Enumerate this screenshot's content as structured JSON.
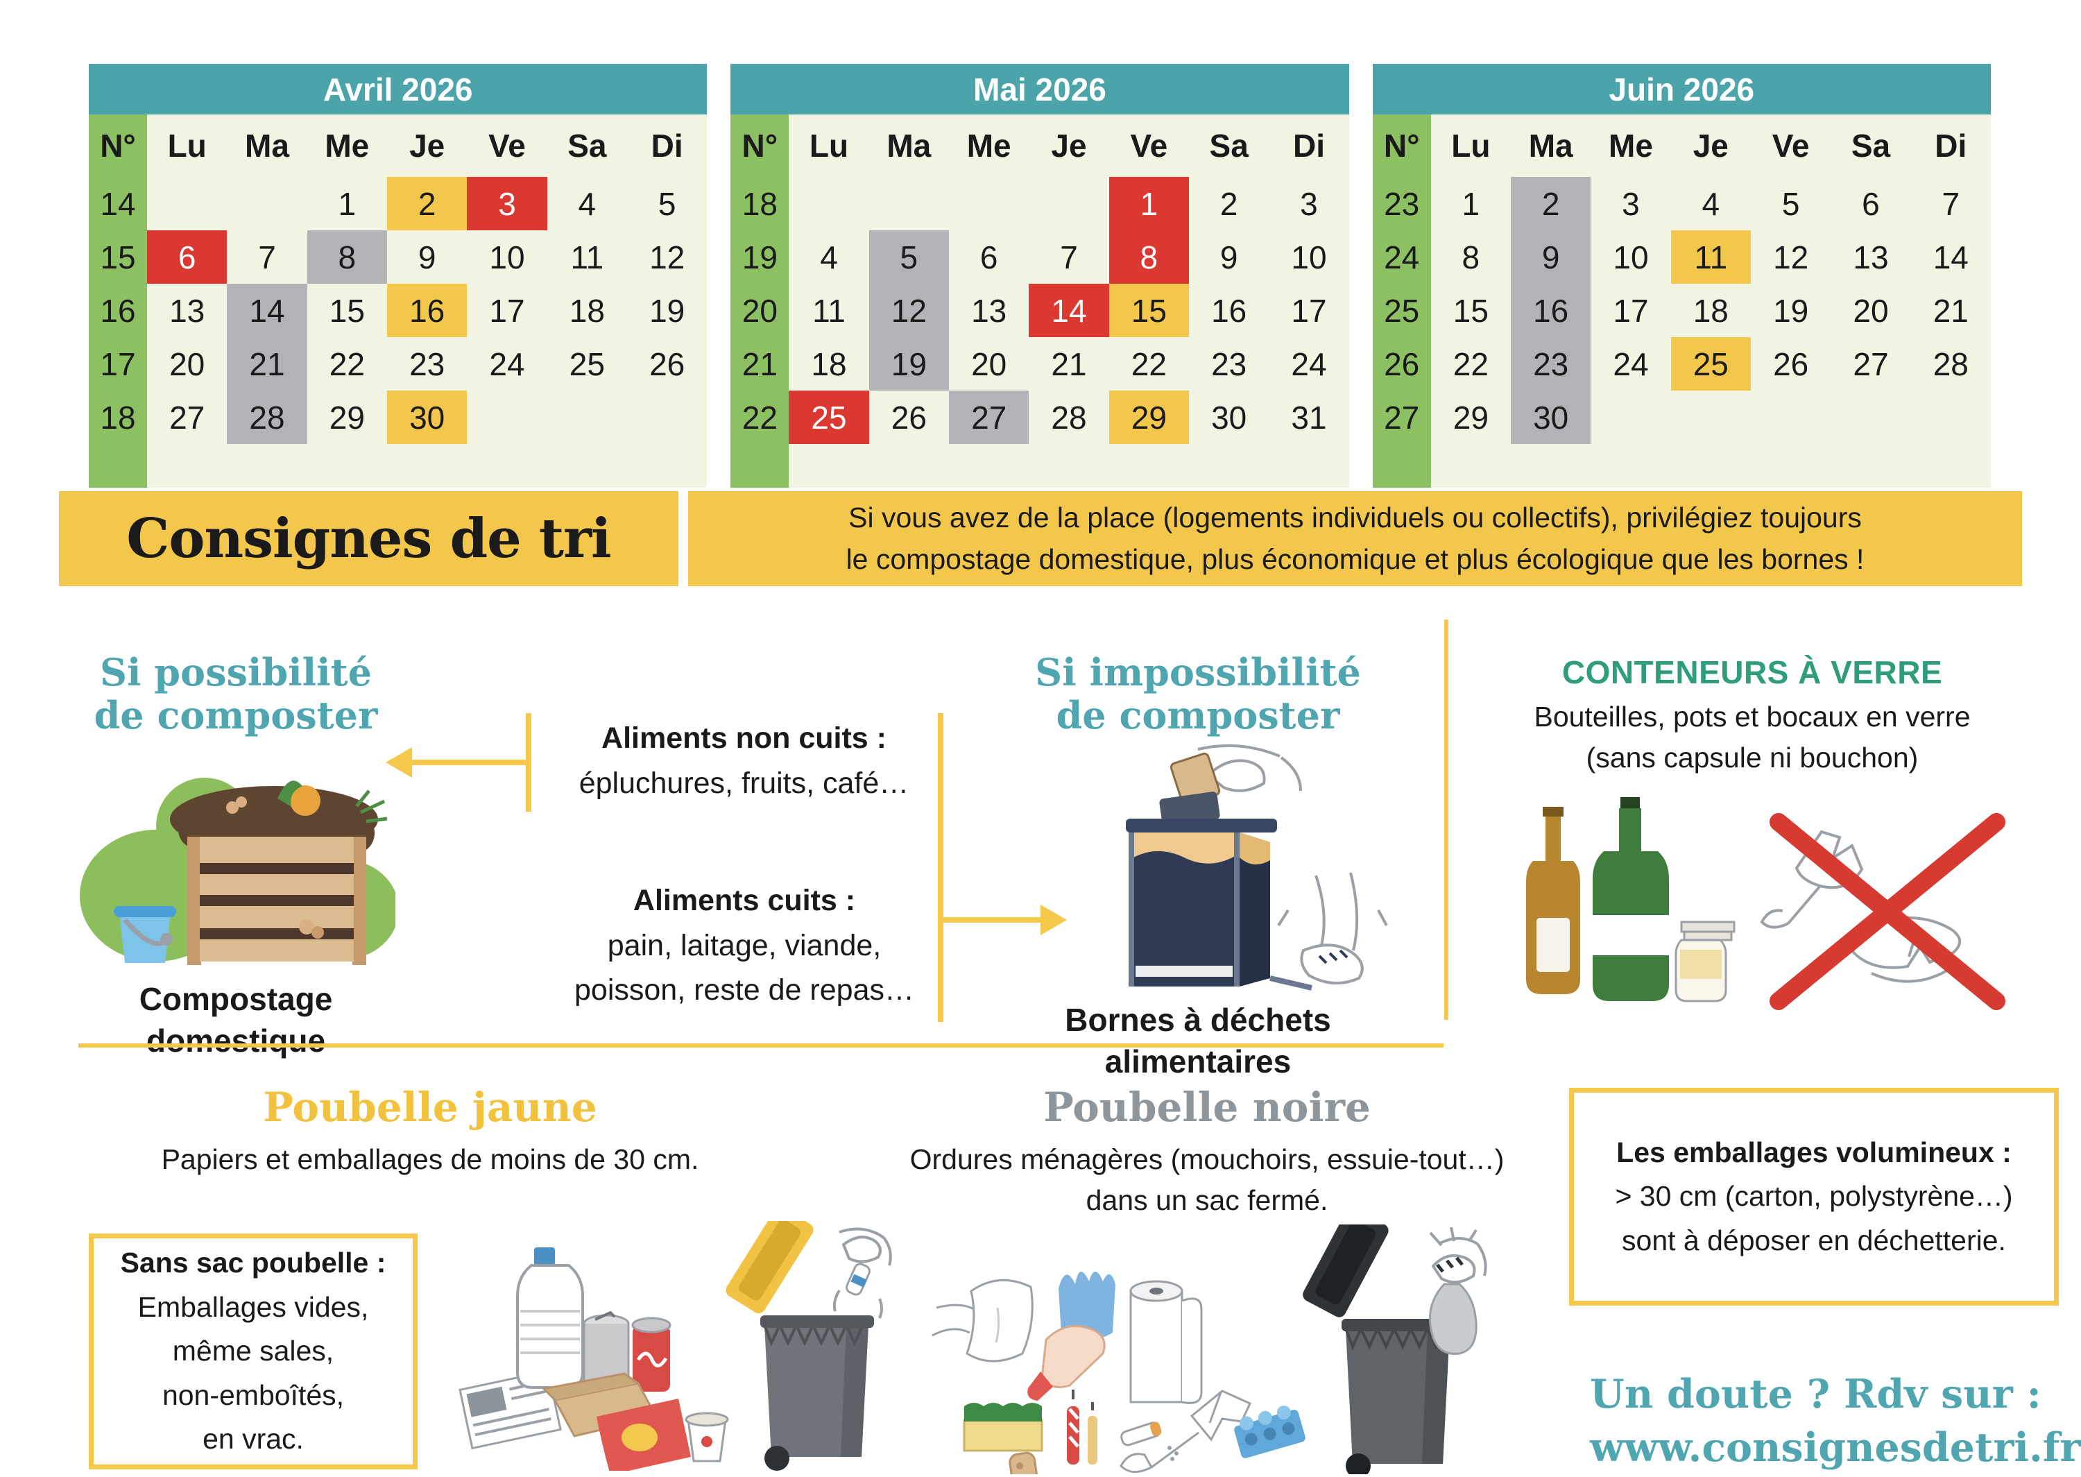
{
  "colors": {
    "teal": "#4BA4AA",
    "green": "#8CC063",
    "cream": "#F1F3E3",
    "yellow": "#F3C74B",
    "yellow-line": "#F5C84C",
    "red": "#DC3832",
    "gray": "#B3B2B6",
    "teal-heading": "#4FA6B0",
    "emerald": "#2F9C7C",
    "yellow-heading": "#F2C23E",
    "gray-heading": "#8D969C",
    "cross-red": "#D63A31"
  },
  "calendars": [
    {
      "title": "Avril 2026",
      "week_col_header": "N°",
      "day_headers": [
        "Lu",
        "Ma",
        "Me",
        "Je",
        "Ve",
        "Sa",
        "Di"
      ],
      "weeks": [
        {
          "num": "14",
          "days": [
            [
              "",
              ""
            ],
            [
              "",
              ""
            ],
            [
              "1",
              ""
            ],
            [
              "2",
              "yellow"
            ],
            [
              "3",
              "red"
            ],
            [
              "4",
              ""
            ],
            [
              "5",
              ""
            ]
          ]
        },
        {
          "num": "15",
          "days": [
            [
              "6",
              "red"
            ],
            [
              "7",
              ""
            ],
            [
              "8",
              "gray"
            ],
            [
              "9",
              ""
            ],
            [
              "10",
              ""
            ],
            [
              "11",
              ""
            ],
            [
              "12",
              ""
            ]
          ]
        },
        {
          "num": "16",
          "days": [
            [
              "13",
              ""
            ],
            [
              "14",
              "gray"
            ],
            [
              "15",
              ""
            ],
            [
              "16",
              "yellow"
            ],
            [
              "17",
              ""
            ],
            [
              "18",
              ""
            ],
            [
              "19",
              ""
            ]
          ]
        },
        {
          "num": "17",
          "days": [
            [
              "20",
              ""
            ],
            [
              "21",
              "gray"
            ],
            [
              "22",
              ""
            ],
            [
              "23",
              ""
            ],
            [
              "24",
              ""
            ],
            [
              "25",
              ""
            ],
            [
              "26",
              ""
            ]
          ]
        },
        {
          "num": "18",
          "days": [
            [
              "27",
              ""
            ],
            [
              "28",
              "gray"
            ],
            [
              "29",
              ""
            ],
            [
              "30",
              "yellow"
            ],
            [
              "",
              ""
            ],
            [
              "",
              ""
            ],
            [
              "",
              ""
            ]
          ]
        }
      ]
    },
    {
      "title": "Mai 2026",
      "week_col_header": "N°",
      "day_headers": [
        "Lu",
        "Ma",
        "Me",
        "Je",
        "Ve",
        "Sa",
        "Di"
      ],
      "weeks": [
        {
          "num": "18",
          "days": [
            [
              "",
              ""
            ],
            [
              "",
              ""
            ],
            [
              "",
              ""
            ],
            [
              "",
              ""
            ],
            [
              "1",
              "red"
            ],
            [
              "2",
              ""
            ],
            [
              "3",
              ""
            ]
          ]
        },
        {
          "num": "19",
          "days": [
            [
              "4",
              ""
            ],
            [
              "5",
              "gray"
            ],
            [
              "6",
              ""
            ],
            [
              "7",
              ""
            ],
            [
              "8",
              "red"
            ],
            [
              "9",
              ""
            ],
            [
              "10",
              ""
            ]
          ]
        },
        {
          "num": "20",
          "days": [
            [
              "11",
              ""
            ],
            [
              "12",
              "gray"
            ],
            [
              "13",
              ""
            ],
            [
              "14",
              "red"
            ],
            [
              "15",
              "yellow"
            ],
            [
              "16",
              ""
            ],
            [
              "17",
              ""
            ]
          ]
        },
        {
          "num": "21",
          "days": [
            [
              "18",
              ""
            ],
            [
              "19",
              "gray"
            ],
            [
              "20",
              ""
            ],
            [
              "21",
              ""
            ],
            [
              "22",
              ""
            ],
            [
              "23",
              ""
            ],
            [
              "24",
              ""
            ]
          ]
        },
        {
          "num": "22",
          "days": [
            [
              "25",
              "red"
            ],
            [
              "26",
              ""
            ],
            [
              "27",
              "gray"
            ],
            [
              "28",
              ""
            ],
            [
              "29",
              "yellow"
            ],
            [
              "30",
              ""
            ],
            [
              "31",
              ""
            ]
          ]
        }
      ]
    },
    {
      "title": "Juin 2026",
      "week_col_header": "N°",
      "day_headers": [
        "Lu",
        "Ma",
        "Me",
        "Je",
        "Ve",
        "Sa",
        "Di"
      ],
      "weeks": [
        {
          "num": "23",
          "days": [
            [
              "1",
              ""
            ],
            [
              "2",
              "gray"
            ],
            [
              "3",
              ""
            ],
            [
              "4",
              ""
            ],
            [
              "5",
              ""
            ],
            [
              "6",
              ""
            ],
            [
              "7",
              ""
            ]
          ]
        },
        {
          "num": "24",
          "days": [
            [
              "8",
              ""
            ],
            [
              "9",
              "gray"
            ],
            [
              "10",
              ""
            ],
            [
              "11",
              "yellow"
            ],
            [
              "12",
              ""
            ],
            [
              "13",
              ""
            ],
            [
              "14",
              ""
            ]
          ]
        },
        {
          "num": "25",
          "days": [
            [
              "15",
              ""
            ],
            [
              "16",
              "gray"
            ],
            [
              "17",
              ""
            ],
            [
              "18",
              ""
            ],
            [
              "19",
              ""
            ],
            [
              "20",
              ""
            ],
            [
              "21",
              ""
            ]
          ]
        },
        {
          "num": "26",
          "days": [
            [
              "22",
              ""
            ],
            [
              "23",
              "gray"
            ],
            [
              "24",
              ""
            ],
            [
              "25",
              "yellow"
            ],
            [
              "26",
              ""
            ],
            [
              "27",
              ""
            ],
            [
              "28",
              ""
            ]
          ]
        },
        {
          "num": "27",
          "days": [
            [
              "29",
              ""
            ],
            [
              "30",
              "gray"
            ],
            [
              "",
              ""
            ],
            [
              "",
              ""
            ],
            [
              "",
              ""
            ],
            [
              "",
              ""
            ],
            [
              "",
              ""
            ]
          ]
        }
      ]
    }
  ],
  "banner": {
    "title": "Consignes de tri",
    "line1": "Si vous avez de la place (logements individuels ou collectifs), privilégiez toujours",
    "line2": "le compostage domestique, plus économique et plus écologique que les bornes !"
  },
  "compost": {
    "heading_line1": "Si possibilité",
    "heading_line2": "de composter",
    "caption_line1": "Compostage",
    "caption_line2": "domestique"
  },
  "center": {
    "block1_title": "Aliments non cuits :",
    "block1_text": "épluchures, fruits, café…",
    "block2_title": "Aliments cuits :",
    "block2_line1": "pain, laitage, viande,",
    "block2_line2": "poisson, reste de repas…"
  },
  "borne": {
    "heading_line1": "Si impossibilité",
    "heading_line2": "de composter",
    "caption_line1": "Bornes à déchets",
    "caption_line2": "alimentaires"
  },
  "glass": {
    "title": "CONTENEURS À VERRE",
    "line1": "Bouteilles, pots et bocaux en verre",
    "line2": "(sans capsule ni bouchon)"
  },
  "yellow_bin": {
    "title": "Poubelle jaune",
    "subtitle": "Papiers et emballages de moins de 30 cm.",
    "box_title": "Sans sac poubelle :",
    "box_lines": [
      "Emballages vides,",
      "même sales,",
      "non-emboîtés,",
      "en vrac."
    ]
  },
  "black_bin": {
    "title": "Poubelle noire",
    "subtitle_line1": "Ordures ménagères (mouchoirs, essuie-tout…)",
    "subtitle_line2": "dans un sac fermé."
  },
  "bulky": {
    "line1": "Les emballages volumineux :",
    "line2": "> 30 cm (carton, polystyrène…)",
    "line3": "sont à déposer en déchetterie."
  },
  "doubt": {
    "line1": "Un doute ? Rdv sur :",
    "line2": "www.consignesdetri.fr"
  }
}
